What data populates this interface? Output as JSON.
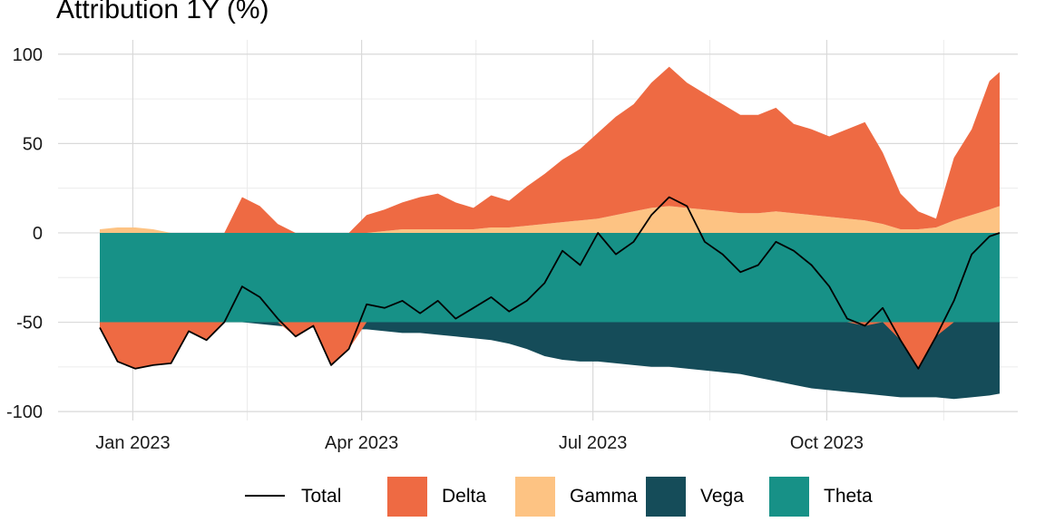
{
  "chart_data": {
    "type": "area",
    "title": "Attribution 1Y (%)",
    "xlabel": "",
    "ylabel": "",
    "x_start": "2022-12-19",
    "x_end": "2023-12-08",
    "ylim": [
      -105,
      108
    ],
    "y_ticks": [
      100,
      50,
      0,
      -50,
      -100
    ],
    "y_tick_labels": [
      "100",
      "50",
      "0",
      "-50",
      "-100"
    ],
    "x_ticks": [
      "2023-01-01",
      "2023-04-01",
      "2023-07-01",
      "2023-10-01"
    ],
    "x_tick_labels": [
      "Jan 2023",
      "Apr 2023",
      "Jul 2023",
      "Oct 2023"
    ],
    "x_minor_ticks": [
      "2023-02-15",
      "2023-05-16",
      "2023-08-16",
      "2023-11-16"
    ],
    "grid": true,
    "legend_position": "bottom",
    "colors": {
      "Delta": "#ee6a43",
      "Gamma": "#fdc383",
      "Vega": "#154c59",
      "Theta": "#179187",
      "Total": "#000000"
    },
    "dates": [
      "2022-12-19",
      "2022-12-26",
      "2023-01-02",
      "2023-01-09",
      "2023-01-16",
      "2023-01-23",
      "2023-01-30",
      "2023-02-06",
      "2023-02-13",
      "2023-02-20",
      "2023-02-27",
      "2023-03-06",
      "2023-03-13",
      "2023-03-20",
      "2023-03-27",
      "2023-04-03",
      "2023-04-10",
      "2023-04-17",
      "2023-04-24",
      "2023-05-01",
      "2023-05-08",
      "2023-05-15",
      "2023-05-22",
      "2023-05-29",
      "2023-06-05",
      "2023-06-12",
      "2023-06-19",
      "2023-06-26",
      "2023-07-03",
      "2023-07-10",
      "2023-07-17",
      "2023-07-24",
      "2023-07-31",
      "2023-08-07",
      "2023-08-14",
      "2023-08-21",
      "2023-08-28",
      "2023-09-04",
      "2023-09-11",
      "2023-09-18",
      "2023-09-25",
      "2023-10-02",
      "2023-10-09",
      "2023-10-16",
      "2023-10-23",
      "2023-10-30",
      "2023-11-06",
      "2023-11-13",
      "2023-11-20",
      "2023-11-27",
      "2023-12-04",
      "2023-12-08"
    ],
    "series": [
      {
        "name": "Total",
        "kind": "line",
        "values": [
          -53,
          -72,
          -76,
          -74,
          -73,
          -55,
          -60,
          -50,
          -30,
          -36,
          -48,
          -58,
          -52,
          -74,
          -65,
          -40,
          -42,
          -38,
          -45,
          -38,
          -48,
          -42,
          -36,
          -44,
          -38,
          -28,
          -10,
          -18,
          0,
          -12,
          -5,
          10,
          20,
          15,
          -5,
          -12,
          -22,
          -18,
          -5,
          -10,
          -18,
          -30,
          -48,
          -52,
          -42,
          -60,
          -76,
          -58,
          -38,
          -12,
          -2,
          0
        ]
      },
      {
        "name": "Delta",
        "kind": "area",
        "values": [
          0,
          0,
          0,
          0,
          0,
          0,
          0,
          0,
          20,
          15,
          5,
          0,
          0,
          0,
          0,
          10,
          12,
          15,
          18,
          20,
          15,
          12,
          18,
          15,
          22,
          28,
          35,
          40,
          48,
          55,
          60,
          70,
          78,
          70,
          65,
          60,
          55,
          55,
          58,
          50,
          48,
          45,
          50,
          55,
          40,
          20,
          10,
          5,
          35,
          48,
          72,
          75
        ]
      },
      {
        "name": "Gamma",
        "kind": "area",
        "values": [
          2,
          3,
          3,
          2,
          0,
          0,
          0,
          0,
          0,
          0,
          0,
          0,
          0,
          0,
          0,
          0,
          1,
          2,
          2,
          2,
          2,
          2,
          3,
          3,
          4,
          5,
          6,
          7,
          8,
          10,
          12,
          14,
          15,
          14,
          13,
          12,
          11,
          11,
          12,
          11,
          10,
          9,
          8,
          7,
          5,
          2,
          2,
          3,
          7,
          10,
          13,
          15
        ]
      },
      {
        "name": "Vega",
        "kind": "area",
        "values": [
          0,
          0,
          0,
          0,
          0,
          0,
          0,
          0,
          0,
          -1,
          -2,
          -3,
          -3,
          -4,
          -4,
          -4,
          -5,
          -6,
          -6,
          -7,
          -8,
          -9,
          -10,
          -12,
          -15,
          -19,
          -21,
          -22,
          -22,
          -23,
          -24,
          -25,
          -25,
          -26,
          -27,
          -28,
          -29,
          -31,
          -33,
          -35,
          -37,
          -38,
          -39,
          -40,
          -41,
          -42,
          -42,
          -42,
          -43,
          -42,
          -41,
          -40
        ]
      },
      {
        "name": "Theta",
        "kind": "area",
        "values": [
          -50,
          -50,
          -50,
          -50,
          -50,
          -50,
          -50,
          -50,
          -50,
          -50,
          -50,
          -50,
          -50,
          -50,
          -50,
          -50,
          -50,
          -50,
          -50,
          -50,
          -50,
          -50,
          -50,
          -50,
          -50,
          -50,
          -50,
          -50,
          -50,
          -50,
          -50,
          -50,
          -50,
          -50,
          -50,
          -50,
          -50,
          -50,
          -50,
          -50,
          -50,
          -50,
          -50,
          -50,
          -50,
          -50,
          -50,
          -50,
          -50,
          -50,
          -50,
          -50
        ]
      }
    ],
    "legend": [
      "Total",
      "Delta",
      "Gamma",
      "Vega",
      "Theta"
    ]
  }
}
